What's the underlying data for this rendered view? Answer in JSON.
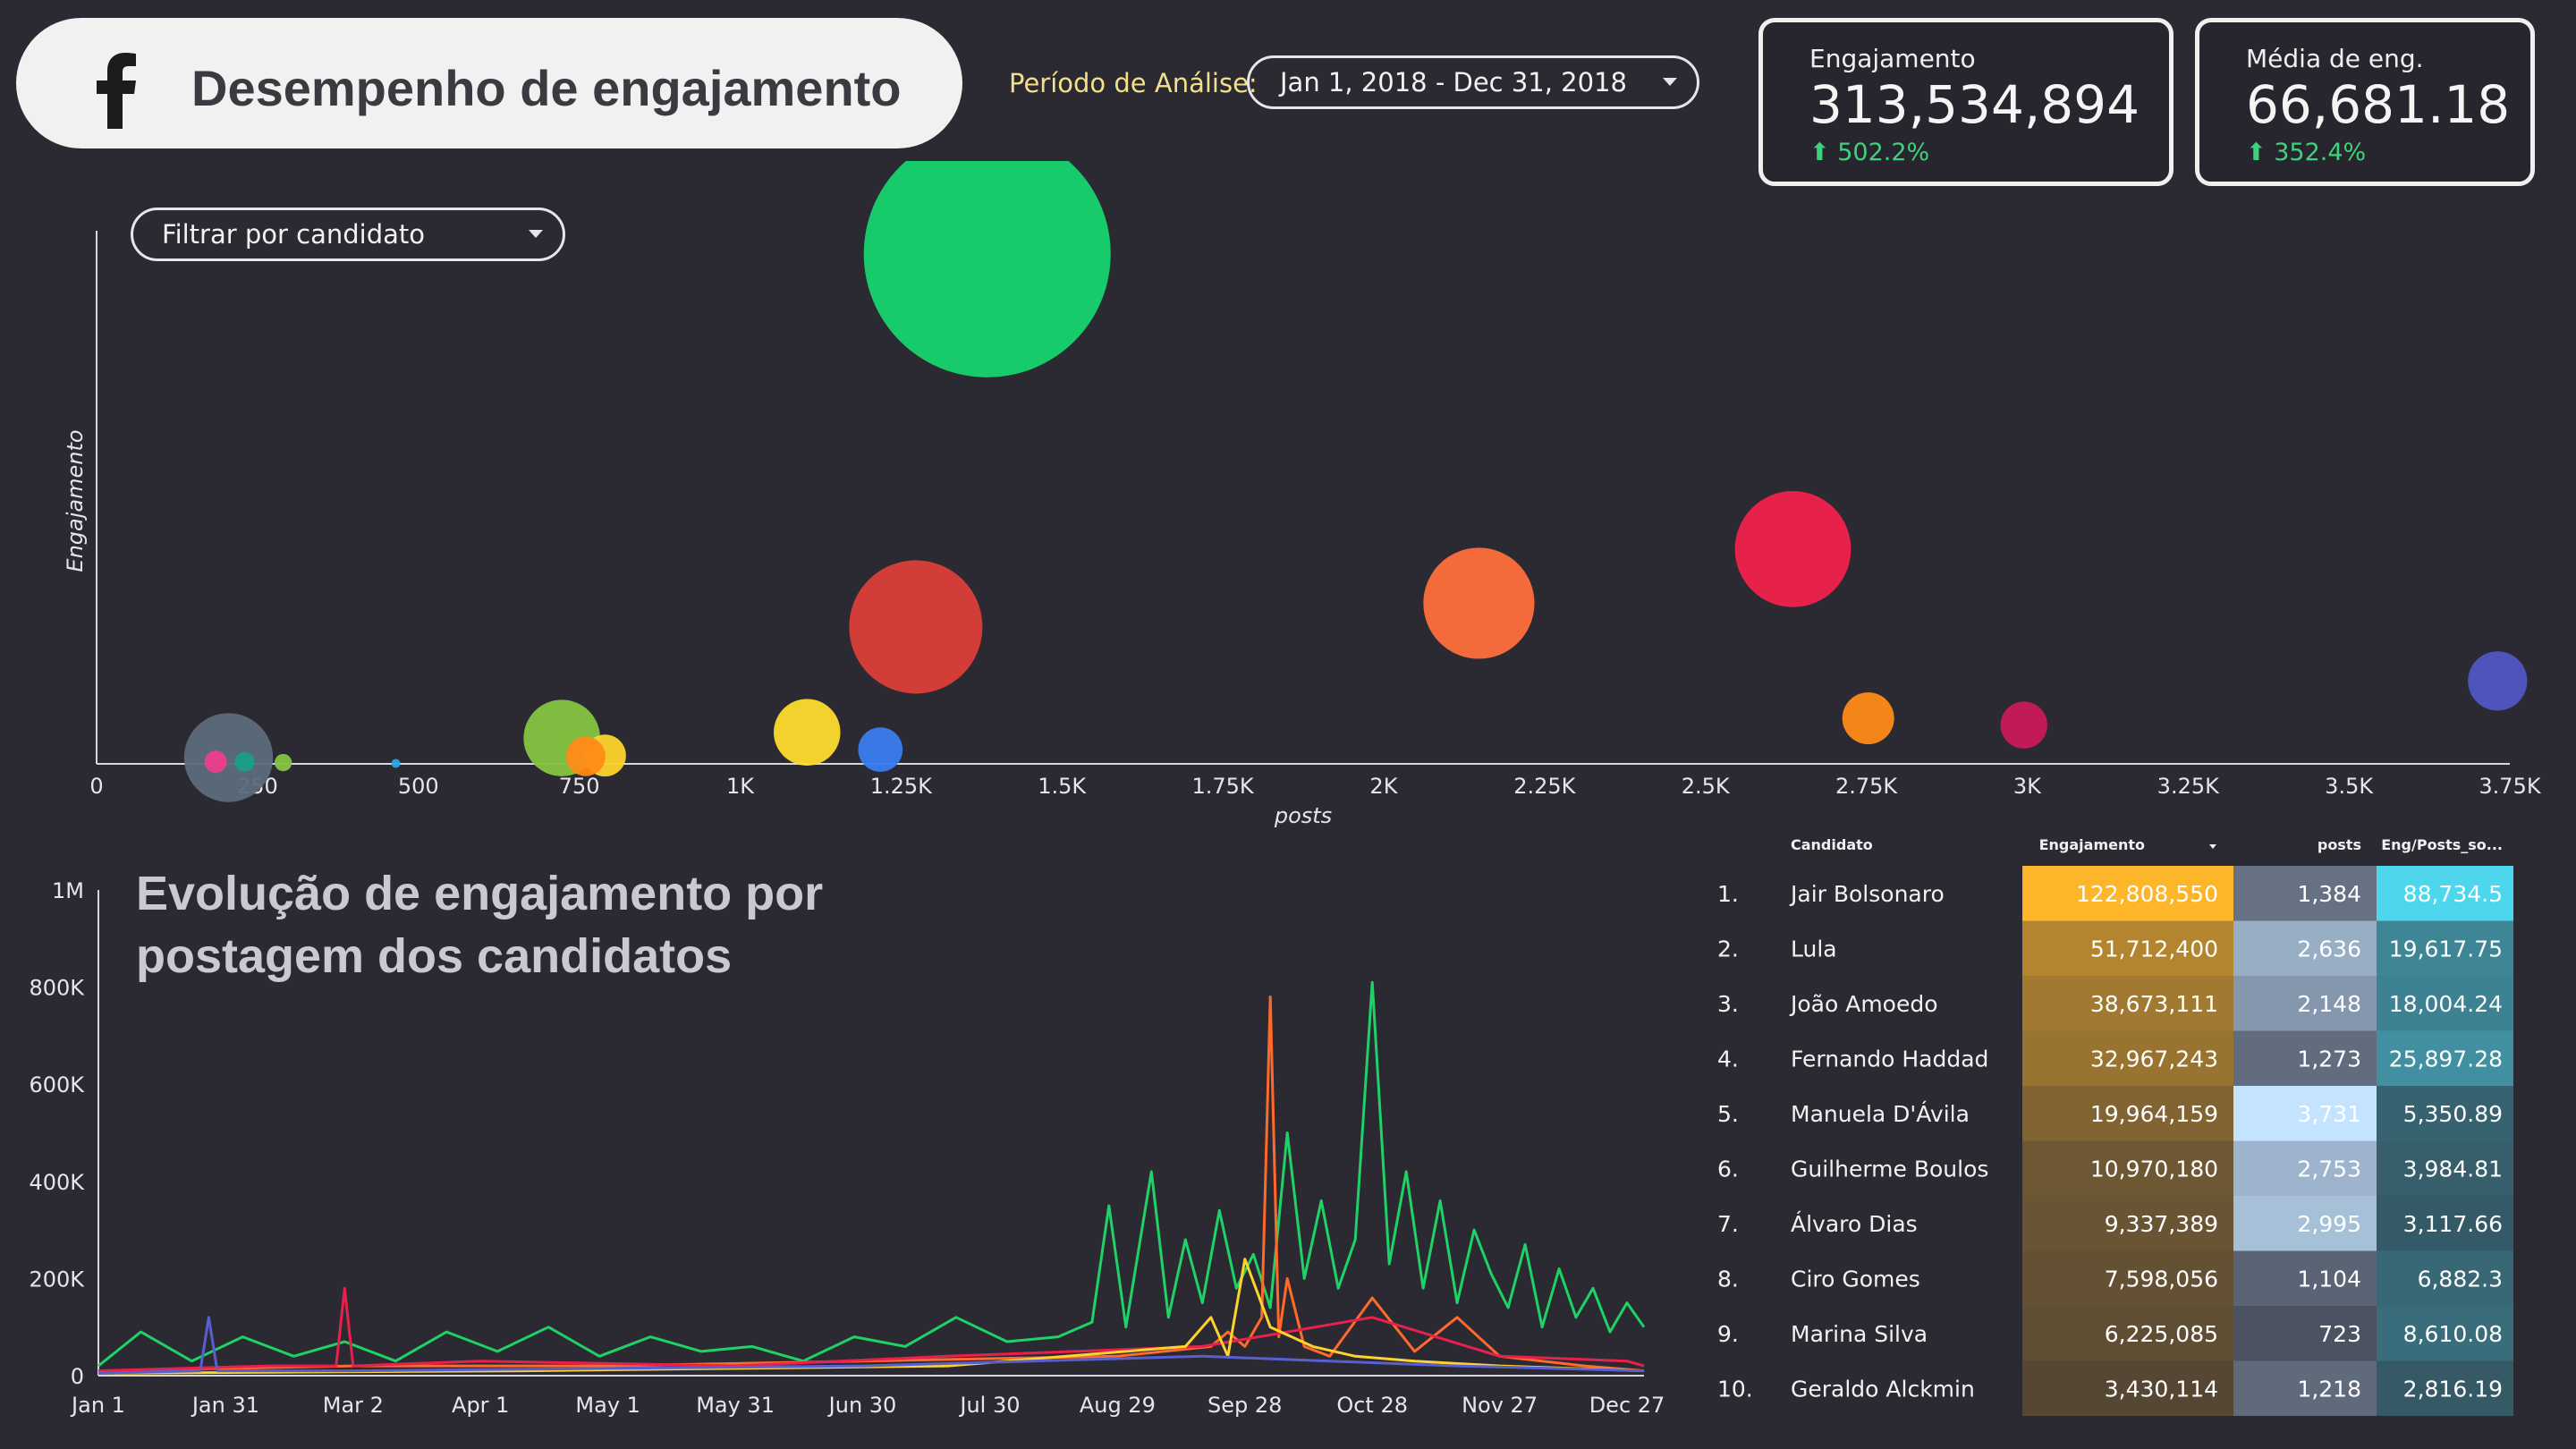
{
  "header": {
    "title": "Desempenho de engajamento",
    "period_label": "Período de Análise:",
    "period_value": "Jan 1, 2018 - Dec 31, 2018"
  },
  "kpis": [
    {
      "label": "Engajamento",
      "value": "313,534,894",
      "delta": "502.2%"
    },
    {
      "label": "Média de eng.",
      "value": "66,681.18",
      "delta": "352.4%"
    }
  ],
  "filter": {
    "label": "Filtrar por candidato"
  },
  "colors": {
    "background": "#2b2a33",
    "positive": "#3fd27c",
    "header_bg": "#f1f1f1"
  },
  "line_chart_title": "Evolução de engajamento por postagem dos candidatos",
  "chart_data": [
    {
      "type": "scatter",
      "subtype": "bubble",
      "xlabel": "posts",
      "ylabel": "Engajamento",
      "xlim": [
        0,
        3750
      ],
      "x_ticks": [
        "0",
        "250",
        "500",
        "750",
        "1K",
        "1.25K",
        "1.5K",
        "1.75K",
        "2K",
        "2.25K",
        "2.5K",
        "2.75K",
        "3K",
        "3.25K",
        "3.5K",
        "3.75K"
      ],
      "x_tick_values": [
        0,
        250,
        500,
        750,
        1000,
        1250,
        1500,
        1750,
        2000,
        2250,
        2500,
        2750,
        3000,
        3250,
        3500,
        3750
      ],
      "ylim": [
        0,
        140000000
      ],
      "points": [
        {
          "x": 1384,
          "y": 122808550,
          "r": 1.0,
          "color": "#17d46e"
        },
        {
          "x": 1273,
          "y": 32967243,
          "r": 0.54,
          "color": "#dc3e39"
        },
        {
          "x": 2148,
          "y": 38673111,
          "r": 0.45,
          "color": "#ff6f3c"
        },
        {
          "x": 2636,
          "y": 51712400,
          "r": 0.47,
          "color": "#f0224c"
        },
        {
          "x": 3731,
          "y": 19964159,
          "r": 0.24,
          "color": "#5156c4"
        },
        {
          "x": 2753,
          "y": 10970180,
          "r": 0.21,
          "color": "#ff8b18"
        },
        {
          "x": 2995,
          "y": 9337389,
          "r": 0.19,
          "color": "#c8195a"
        },
        {
          "x": 1104,
          "y": 7598056,
          "r": 0.27,
          "color": "#fddb2c"
        },
        {
          "x": 723,
          "y": 6225085,
          "r": 0.31,
          "color": "#85c441"
        },
        {
          "x": 1218,
          "y": 3430114,
          "r": 0.18,
          "color": "#3a7df0"
        },
        {
          "x": 205,
          "y": 1500000,
          "r": 0.36,
          "color": "#5c6c7c"
        },
        {
          "x": 790,
          "y": 2000000,
          "r": 0.17,
          "color": "#fdd32c"
        },
        {
          "x": 760,
          "y": 1800000,
          "r": 0.16,
          "color": "#ff8b18"
        },
        {
          "x": 185,
          "y": 500000,
          "r": 0.09,
          "color": "#ec3f8b"
        },
        {
          "x": 230,
          "y": 500000,
          "r": 0.08,
          "color": "#1a9e8a"
        },
        {
          "x": 290,
          "y": 300000,
          "r": 0.07,
          "color": "#85c441"
        },
        {
          "x": 465,
          "y": 100000,
          "r": 0.03,
          "color": "#29a6dc"
        }
      ]
    },
    {
      "type": "line",
      "ylim": [
        0,
        1000000
      ],
      "y_ticks": [
        "0",
        "200K",
        "400K",
        "600K",
        "800K",
        "1M"
      ],
      "y_tick_values": [
        0,
        200000,
        400000,
        600000,
        800000,
        1000000
      ],
      "x_ticks": [
        "Jan 1",
        "Jan 31",
        "Mar 2",
        "Apr 1",
        "May 1",
        "May 31",
        "Jun 30",
        "Jul 30",
        "Aug 29",
        "Sep 28",
        "Oct 28",
        "Nov 27",
        "Dec 27"
      ],
      "x_tick_days": [
        0,
        30,
        60,
        90,
        120,
        150,
        180,
        210,
        240,
        270,
        300,
        330,
        360
      ],
      "xlim_days": [
        0,
        364
      ],
      "series": [
        {
          "color": "#1ed266",
          "days": [
            0,
            10,
            22,
            34,
            46,
            58,
            70,
            82,
            94,
            106,
            118,
            130,
            142,
            154,
            166,
            178,
            190,
            202,
            214,
            226,
            234,
            238,
            242,
            248,
            252,
            256,
            260,
            264,
            268,
            272,
            276,
            280,
            284,
            288,
            292,
            296,
            300,
            304,
            308,
            312,
            316,
            320,
            324,
            328,
            332,
            336,
            340,
            344,
            348,
            352,
            356,
            360,
            364
          ],
          "values": [
            20000,
            90000,
            30000,
            80000,
            40000,
            70000,
            30000,
            90000,
            50000,
            100000,
            40000,
            80000,
            50000,
            60000,
            30000,
            80000,
            60000,
            120000,
            70000,
            80000,
            110000,
            350000,
            100000,
            420000,
            120000,
            280000,
            150000,
            340000,
            180000,
            250000,
            140000,
            500000,
            200000,
            360000,
            180000,
            280000,
            810000,
            230000,
            420000,
            180000,
            360000,
            150000,
            300000,
            210000,
            140000,
            270000,
            100000,
            220000,
            120000,
            180000,
            90000,
            150000,
            100000
          ]
        },
        {
          "color": "#ff6a2b",
          "days": [
            0,
            60,
            120,
            180,
            240,
            262,
            266,
            270,
            274,
            276,
            278,
            280,
            284,
            290,
            300,
            310,
            320,
            330,
            340,
            350,
            364
          ],
          "values": [
            10000,
            20000,
            20000,
            30000,
            40000,
            60000,
            90000,
            60000,
            120000,
            780000,
            80000,
            200000,
            60000,
            40000,
            160000,
            50000,
            120000,
            40000,
            30000,
            20000,
            10000
          ]
        },
        {
          "color": "#e8204d",
          "days": [
            0,
            40,
            56,
            58,
            60,
            90,
            150,
            200,
            260,
            300,
            330,
            360,
            364
          ],
          "values": [
            10000,
            20000,
            20000,
            180000,
            20000,
            30000,
            20000,
            40000,
            60000,
            120000,
            40000,
            30000,
            20000
          ]
        },
        {
          "color": "#fdd32c",
          "days": [
            0,
            100,
            200,
            256,
            262,
            266,
            270,
            276,
            286,
            296,
            310,
            330,
            364
          ],
          "values": [
            5000,
            10000,
            20000,
            60000,
            120000,
            40000,
            240000,
            100000,
            60000,
            40000,
            30000,
            20000,
            10000
          ]
        },
        {
          "color": "#5a5fd0",
          "days": [
            0,
            24,
            26,
            28,
            60,
            120,
            180,
            260,
            290,
            320,
            364
          ],
          "values": [
            5000,
            10000,
            120000,
            10000,
            10000,
            15000,
            20000,
            40000,
            30000,
            20000,
            10000
          ]
        }
      ]
    },
    {
      "type": "table",
      "columns": [
        "Candidato",
        "Engajamento",
        "posts",
        "Eng/Posts_so..."
      ],
      "rows": [
        {
          "rank": "1.",
          "name": "Jair Bolsonaro",
          "eng": "122,808,550",
          "posts": "1,384",
          "ratio": "88,734.5"
        },
        {
          "rank": "2.",
          "name": "Lula",
          "eng": "51,712,400",
          "posts": "2,636",
          "ratio": "19,617.75"
        },
        {
          "rank": "3.",
          "name": "João Amoedo",
          "eng": "38,673,111",
          "posts": "2,148",
          "ratio": "18,004.24"
        },
        {
          "rank": "4.",
          "name": "Fernando Haddad",
          "eng": "32,967,243",
          "posts": "1,273",
          "ratio": "25,897.28"
        },
        {
          "rank": "5.",
          "name": "Manuela D'Ávila",
          "eng": "19,964,159",
          "posts": "3,731",
          "ratio": "5,350.89"
        },
        {
          "rank": "6.",
          "name": "Guilherme Boulos",
          "eng": "10,970,180",
          "posts": "2,753",
          "ratio": "3,984.81"
        },
        {
          "rank": "7.",
          "name": "Álvaro Dias",
          "eng": "9,337,389",
          "posts": "2,995",
          "ratio": "3,117.66"
        },
        {
          "rank": "8.",
          "name": "Ciro Gomes",
          "eng": "7,598,056",
          "posts": "1,104",
          "ratio": "6,882.3"
        },
        {
          "rank": "9.",
          "name": "Marina Silva",
          "eng": "6,225,085",
          "posts": "723",
          "ratio": "8,610.08"
        },
        {
          "rank": "10.",
          "name": "Geraldo Alckmin",
          "eng": "3,430,114",
          "posts": "1,218",
          "ratio": "2,816.19"
        }
      ],
      "eng_values": [
        122808550,
        51712400,
        38673111,
        32967243,
        19964159,
        10970180,
        9337389,
        7598056,
        6225085,
        3430114
      ],
      "posts_values": [
        1384,
        2636,
        2148,
        1273,
        3731,
        2753,
        2995,
        1104,
        723,
        1218
      ],
      "ratio_values": [
        88734.5,
        19617.75,
        18004.24,
        25897.28,
        5350.89,
        3984.81,
        3117.66,
        6882.3,
        8610.08,
        2816.19
      ]
    }
  ]
}
